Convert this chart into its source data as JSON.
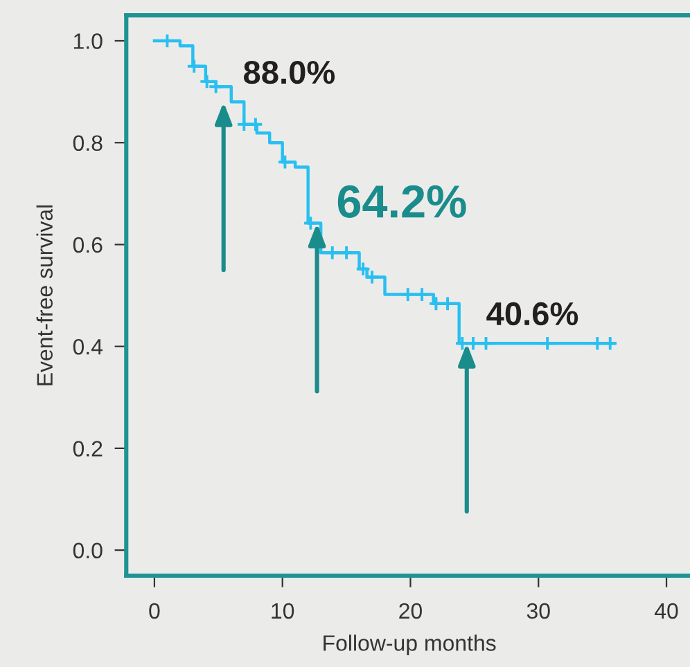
{
  "chart_data": {
    "type": "step",
    "xlabel": "Follow-up months",
    "ylabel": "Event-free survival",
    "series": [
      {
        "color": "#29bff0",
        "x": [
          0,
          2,
          3,
          4,
          4.8,
          6,
          7,
          8,
          9,
          10,
          11,
          12,
          13,
          16,
          16.6,
          18,
          21.8,
          23.8,
          35.9
        ],
        "values": [
          1.0,
          0.99,
          0.95,
          0.92,
          0.91,
          0.88,
          0.836,
          0.819,
          0.8,
          0.762,
          0.752,
          0.642,
          0.584,
          0.552,
          0.536,
          0.502,
          0.484,
          0.406,
          0.406
        ]
      },
      {
        "type": "scatter",
        "marker": "cross",
        "color": "#29bff0",
        "x": [
          1,
          3.1,
          4.1,
          4.8,
          7,
          7.9,
          10.2,
          12.2,
          13.9,
          15,
          16.3,
          17,
          19.8,
          20.9,
          22,
          22.9,
          24.05,
          24.9,
          25.9,
          30.7,
          34.6,
          35.6
        ],
        "values": [
          1.0,
          0.95,
          0.92,
          0.91,
          0.836,
          0.836,
          0.762,
          0.642,
          0.584,
          0.584,
          0.552,
          0.536,
          0.502,
          0.502,
          0.484,
          0.484,
          0.406,
          0.406,
          0.406,
          0.406,
          0.406,
          0.406
        ]
      }
    ],
    "annotations": [
      {
        "text": "88.0%",
        "x": 5.4,
        "y": 0.88
      },
      {
        "text": "64.2%",
        "x": 12.7,
        "y": 0.642
      },
      {
        "text": "40.6%",
        "x": 24.4,
        "y": 0.406
      }
    ],
    "xlim": [
      -2.2,
      42
    ],
    "ylim": [
      -0.05,
      1.05
    ],
    "xticks": [
      0,
      10,
      20,
      30,
      40
    ],
    "yticks": [
      {
        "value": 0,
        "label": "0.0"
      },
      {
        "value": 0.2,
        "label": "0.2"
      },
      {
        "value": 0.4,
        "label": "0.4"
      },
      {
        "value": 0.6,
        "label": "0.6"
      },
      {
        "value": 0.8,
        "label": "0.8"
      },
      {
        "value": 1,
        "label": "1.0"
      }
    ],
    "grid": false,
    "legend": false
  }
}
